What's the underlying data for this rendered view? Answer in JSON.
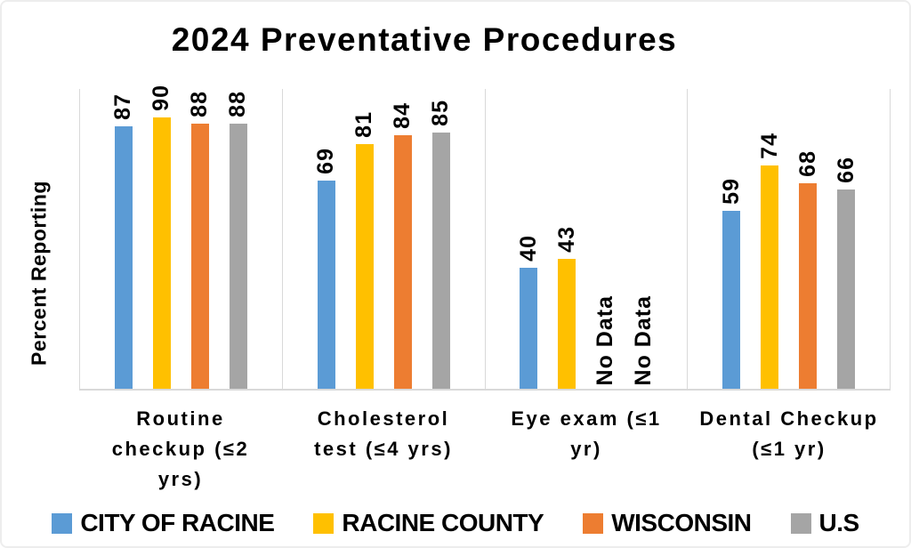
{
  "title": "2024 Preventative Procedures",
  "chart_data": {
    "type": "bar",
    "title": "2024 Preventative Procedures",
    "ylabel": "Percent Reporting",
    "xlabel": "",
    "ylim": [
      0,
      100
    ],
    "grid": false,
    "gridline_style": "vertical separators between category groups",
    "legend_position": "bottom",
    "no_data_label": "No Data",
    "categories": [
      "Routine checkup (≤2 yrs)",
      "Cholesterol test (≤4 yrs)",
      "Eye exam (≤1 yr)",
      "Dental Checkup (≤1 yr)"
    ],
    "series": [
      {
        "name": "CITY OF RACINE",
        "color": "#5B9BD5",
        "values": [
          87,
          69,
          40,
          59
        ]
      },
      {
        "name": "RACINE COUNTY",
        "color": "#FFC000",
        "values": [
          90,
          81,
          43,
          74
        ]
      },
      {
        "name": "WISCONSIN",
        "color": "#ED7D31",
        "values": [
          88,
          84,
          null,
          68
        ]
      },
      {
        "name": "U.S",
        "color": "#A5A5A5",
        "values": [
          88,
          85,
          null,
          66
        ]
      }
    ]
  },
  "colors": {
    "axis_line": "#D9D9D9",
    "text": "#000000",
    "background": "#FFFFFF"
  }
}
